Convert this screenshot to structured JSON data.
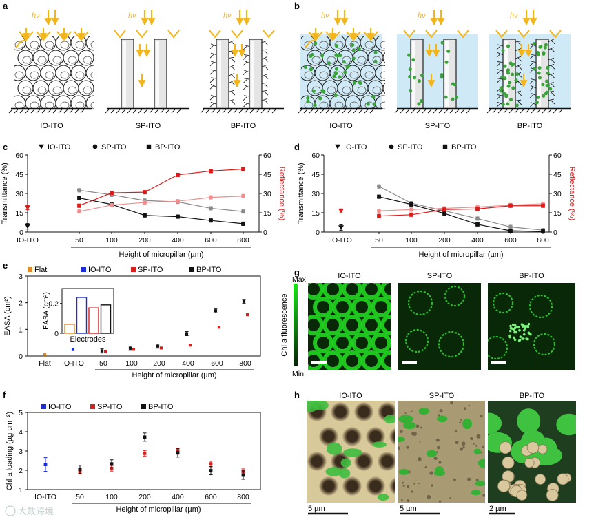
{
  "colors": {
    "io": "#1c2cd6",
    "sp": "#d71f1f",
    "bp": "#111111",
    "flat": "#e08a2e",
    "sp_grey": "#8a8a8a",
    "refl": "#dd1b1b",
    "refl_light": "#ef8f8f",
    "photon": "#f2b51b",
    "cell_green": "#3aa33a",
    "water": "#cfeaf6",
    "fluor": "#19d419"
  },
  "panel_labels": [
    "a",
    "b",
    "c",
    "d",
    "e",
    "f",
    "g",
    "h"
  ],
  "panel_a": {
    "schematics": [
      {
        "label": "IO-ITO",
        "hv": "hv",
        "icon": "inverse-opal-schematic"
      },
      {
        "label": "SP-ITO",
        "hv": "hv",
        "icon": "smooth-pillar-schematic"
      },
      {
        "label": "BP-ITO",
        "hv": "hv",
        "icon": "branched-pillar-schematic"
      }
    ]
  },
  "panel_b": {
    "schematics": [
      {
        "label": "IO-ITO",
        "hv": "hv",
        "icon": "inverse-opal-cells-schematic"
      },
      {
        "label": "SP-ITO",
        "hv": "hv",
        "icon": "smooth-pillar-cells-schematic"
      },
      {
        "label": "BP-ITO",
        "hv": "hv",
        "icon": "branched-pillar-cells-schematic"
      }
    ]
  },
  "chart_data": [
    {
      "id": "c",
      "type": "line",
      "legend": [
        "IO-ITO",
        "SP-ITO",
        "BP-ITO"
      ],
      "legend_placement": "top-left",
      "ylabel": "Transmittance (%)",
      "y2label": "Reflectance (%)",
      "xlabel": "Height of micropillar (µm)",
      "x_categories": [
        "IO-ITO",
        "50",
        "100",
        "200",
        "400",
        "600",
        "800"
      ],
      "ylim": [
        0,
        60
      ],
      "y_ticks": [
        0,
        15,
        30,
        45,
        60
      ],
      "y2lim": [
        0,
        60
      ],
      "y2_ticks": [
        0,
        15,
        30,
        45,
        60
      ],
      "io_transmittance": 4.5,
      "io_reflectance": 19,
      "series": [
        {
          "name": "SP-ITO",
          "axis": "left",
          "values": [
            null,
            32.5,
            29,
            24.5,
            23.5,
            18.5,
            16
          ]
        },
        {
          "name": "BP-ITO",
          "axis": "left",
          "values": [
            null,
            26.5,
            21.5,
            13,
            12,
            9,
            6.5
          ]
        },
        {
          "axis": "right",
          "values": [
            null,
            16,
            21,
            23,
            24,
            27,
            28
          ]
        },
        {
          "axis": "right",
          "values": [
            null,
            20.5,
            30.5,
            31,
            44.5,
            47.5,
            49
          ]
        }
      ]
    },
    {
      "id": "d",
      "type": "line",
      "legend": [
        "IO-ITO",
        "SP-ITO",
        "BP-ITO"
      ],
      "legend_placement": "top-left",
      "ylabel": "Transmittance (%)",
      "y2label": "Reflectance (%)",
      "xlabel": "Height of micropillar (µm)",
      "x_categories": [
        "IO-ITO",
        "50",
        "100",
        "200",
        "400",
        "600",
        "800"
      ],
      "ylim": [
        0,
        60
      ],
      "y_ticks": [
        0,
        15,
        30,
        45,
        60
      ],
      "y2lim": [
        0,
        60
      ],
      "y2_ticks": [
        0,
        15,
        30,
        45,
        60
      ],
      "io_transmittance": 3.5,
      "io_reflectance": 16.5,
      "series": [
        {
          "name": "SP-ITO",
          "axis": "left",
          "values": [
            null,
            35.5,
            22.5,
            16.5,
            10.5,
            4,
            1.5
          ]
        },
        {
          "name": "BP-ITO",
          "axis": "left",
          "values": [
            null,
            27.5,
            21.5,
            14.5,
            6,
            1,
            0.5
          ]
        },
        {
          "axis": "right",
          "values": [
            null,
            16.5,
            17.5,
            18.5,
            19.5,
            21,
            22
          ]
        },
        {
          "axis": "right",
          "values": [
            null,
            12.5,
            13.5,
            17.5,
            18,
            20.5,
            20.5
          ]
        }
      ]
    },
    {
      "id": "e",
      "type": "scatter",
      "legend": [
        "Flat",
        "IO-ITO",
        "SP-ITO",
        "BP-ITO"
      ],
      "legend_placement": "top",
      "ylabel": "EASA (cm²)",
      "xlabel": "Height of micropillar (µm)",
      "x_categories": [
        "Flat",
        "IO-ITO",
        "50",
        "100",
        "200",
        "400",
        "600",
        "800"
      ],
      "ylim": [
        0,
        3
      ],
      "y_ticks": [
        0,
        1,
        2,
        3
      ],
      "flat": 0.06,
      "io": 0.24,
      "sp": [
        0.17,
        0.25,
        0.3,
        0.41,
        1.08,
        1.55
      ],
      "bp": [
        0.19,
        0.29,
        0.37,
        0.84,
        1.7,
        2.05
      ],
      "inset": {
        "xlabel": "Electrodes",
        "ylabel": "EASA (cm²)",
        "y_ticks": [
          "0",
          "0.2"
        ],
        "ylim": [
          0,
          0.3
        ],
        "bars": [
          {
            "name": "Flat",
            "value": 0.06
          },
          {
            "name": "IO-ITO",
            "value": 0.24
          },
          {
            "name": "SP-ITO",
            "value": 0.17
          },
          {
            "name": "BP-ITO",
            "value": 0.19
          }
        ]
      }
    },
    {
      "id": "f",
      "type": "scatter",
      "legend": [
        "IO-ITO",
        "SP-ITO",
        "BP-ITO"
      ],
      "legend_placement": "top-left",
      "ylabel": "Chl a loading (µg cm⁻²)",
      "xlabel": "Height of micropillar (µm)",
      "x_categories": [
        "IO-ITO",
        "50",
        "100",
        "200",
        "400",
        "600",
        "800"
      ],
      "ylim": [
        1,
        5
      ],
      "y_ticks": [
        1,
        2,
        3,
        4,
        5
      ],
      "io": 2.3,
      "sp": [
        1.95,
        2.1,
        2.88,
        3.0,
        2.33,
        1.93
      ],
      "bp": [
        2.05,
        2.33,
        3.72,
        2.9,
        1.98,
        1.75
      ]
    }
  ],
  "panel_g": {
    "colorbar": {
      "max": "Max",
      "min": "Min",
      "label": "Chl a fluorescence"
    },
    "images": [
      {
        "label": "IO-ITO",
        "icon": "io-fluorescence-image"
      },
      {
        "label": "SP-ITO",
        "icon": "sp-fluorescence-image"
      },
      {
        "label": "BP-ITO",
        "icon": "bp-fluorescence-image"
      }
    ]
  },
  "panel_h": {
    "images": [
      {
        "label": "IO-ITO",
        "scale": "5 µm",
        "icon": "io-sem-image"
      },
      {
        "label": "SP-ITO",
        "scale": "5 µm",
        "icon": "sp-sem-image"
      },
      {
        "label": "BP-ITO",
        "scale": "2 µm",
        "icon": "bp-sem-image"
      }
    ]
  },
  "watermark": "大数跨境"
}
